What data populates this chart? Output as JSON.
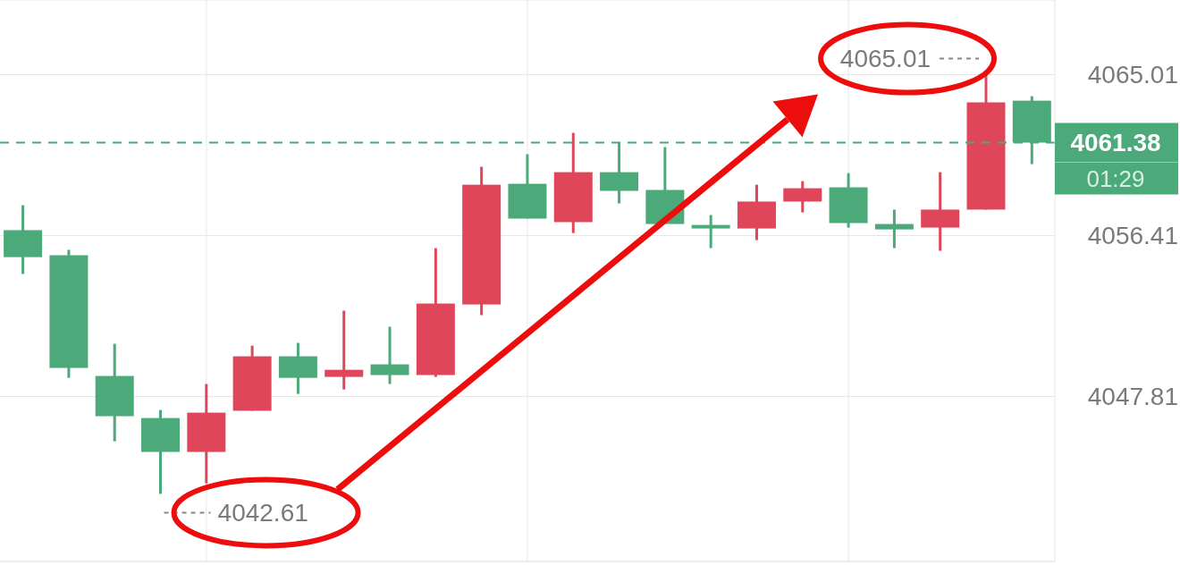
{
  "chart_data": {
    "type": "candlestick",
    "categories": [
      null,
      null,
      null,
      null,
      null,
      null,
      null,
      null,
      null,
      null,
      null,
      null,
      null,
      null,
      null,
      null,
      null,
      null,
      null,
      null,
      null,
      null,
      null
    ],
    "ohlc": [
      [
        4056.7,
        4058.03,
        4054.36,
        4055.26
      ],
      [
        4055.36,
        4055.65,
        4048.81,
        4049.34
      ],
      [
        4048.91,
        4050.63,
        4045.42,
        4046.76
      ],
      [
        4046.66,
        4047.09,
        4042.61,
        4044.85
      ],
      [
        4044.85,
        4048.48,
        4043.17,
        4046.95
      ],
      [
        4047.05,
        4050.53,
        4047.05,
        4049.96
      ],
      [
        4049.96,
        4050.68,
        4047.95,
        4048.81
      ],
      [
        4048.86,
        4052.4,
        4048.19,
        4049.24
      ],
      [
        4049.53,
        4051.54,
        4048.48,
        4048.96
      ],
      [
        4048.96,
        4055.74,
        4048.86,
        4052.78
      ],
      [
        4052.73,
        4060.09,
        4052.16,
        4059.13
      ],
      [
        4059.18,
        4060.76,
        4057.32,
        4057.32
      ],
      [
        4057.13,
        4061.9,
        4056.55,
        4059.8
      ],
      [
        4059.8,
        4061.38,
        4058.13,
        4058.8
      ],
      [
        4058.85,
        4061.14,
        4057.03,
        4057.03
      ],
      [
        4056.98,
        4057.51,
        4055.74,
        4056.79
      ],
      [
        4056.79,
        4059.13,
        4056.17,
        4058.23
      ],
      [
        4058.23,
        4059.32,
        4057.65,
        4058.94
      ],
      [
        4058.99,
        4059.75,
        4056.84,
        4057.08
      ],
      [
        4057.03,
        4057.8,
        4055.74,
        4056.74
      ],
      [
        4056.84,
        4059.8,
        4055.6,
        4057.8
      ],
      [
        4057.8,
        4065.01,
        4057.8,
        4063.53
      ],
      [
        4063.62,
        4063.86,
        4060.23,
        4061.38
      ]
    ],
    "colors": [
      "#4caa7a",
      "#4caa7a",
      "#4caa7a",
      "#4caa7a",
      "#e0465a",
      "#e0465a",
      "#4caa7a",
      "#e0465a",
      "#4caa7a",
      "#e0465a",
      "#e0465a",
      "#4caa7a",
      "#e0465a",
      "#4caa7a",
      "#4caa7a",
      "#4caa7a",
      "#e0465a",
      "#e0465a",
      "#4caa7a",
      "#4caa7a",
      "#e0465a",
      "#e0465a",
      "#4caa7a"
    ],
    "ylim": [
      4039,
      4069
    ],
    "yticks": [
      4047.81,
      4056.41,
      4065.01
    ],
    "grid": true,
    "tick_labels": "y",
    "ref_lines": [
      {
        "axis": "y",
        "value": 4061.38,
        "label": "4061.38",
        "color": "#4caa7a",
        "line_style": "dashed"
      }
    ],
    "annotations": [
      "4065.01",
      "4042.61",
      "01:29"
    ]
  }
}
